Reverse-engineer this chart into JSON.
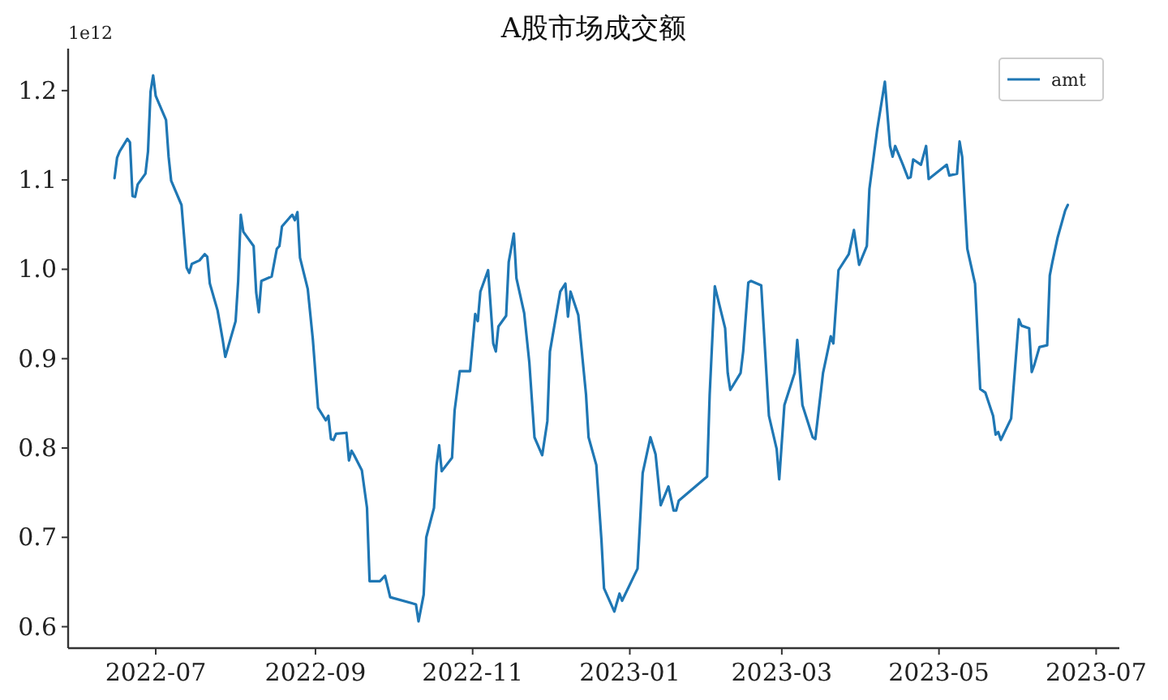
{
  "chart_data": {
    "type": "line",
    "title": "A股市场成交额",
    "annotations": [
      "1e12"
    ],
    "legend": "top right",
    "xlim": [
      "2022-05-28",
      "2023-07-10"
    ],
    "xticks": [
      "2022-07",
      "2022-09",
      "2022-11",
      "2023-01",
      "2023-03",
      "2023-05",
      "2023-07"
    ],
    "ylim": [
      0.576,
      1.247
    ],
    "yticks": [
      0.6,
      0.7,
      0.8,
      0.9,
      {
        "value": 1.0,
        "label": "1.0"
      },
      1.1,
      1.2
    ],
    "x": [
      "2022-06-15",
      "2022-06-16",
      "2022-06-17",
      "2022-06-20",
      "2022-06-21",
      "2022-06-22",
      "2022-06-23",
      "2022-06-24",
      "2022-06-27",
      "2022-06-28",
      "2022-06-29",
      "2022-06-30",
      "2022-07-01",
      "2022-07-05",
      "2022-07-06",
      "2022-07-07",
      "2022-07-11",
      "2022-07-13",
      "2022-07-14",
      "2022-07-15",
      "2022-07-18",
      "2022-07-20",
      "2022-07-21",
      "2022-07-22",
      "2022-07-25",
      "2022-07-27",
      "2022-07-28",
      "2022-08-01",
      "2022-08-02",
      "2022-08-03",
      "2022-08-04",
      "2022-08-08",
      "2022-08-09",
      "2022-08-10",
      "2022-08-11",
      "2022-08-15",
      "2022-08-17",
      "2022-08-18",
      "2022-08-19",
      "2022-08-22",
      "2022-08-23",
      "2022-08-24",
      "2022-08-25",
      "2022-08-26",
      "2022-08-29",
      "2022-08-31",
      "2022-09-02",
      "2022-09-05",
      "2022-09-06",
      "2022-09-07",
      "2022-09-08",
      "2022-09-09",
      "2022-09-13",
      "2022-09-14",
      "2022-09-15",
      "2022-09-16",
      "2022-09-19",
      "2022-09-21",
      "2022-09-22",
      "2022-09-26",
      "2022-09-28",
      "2022-09-30",
      "2022-10-10",
      "2022-10-11",
      "2022-10-13",
      "2022-10-14",
      "2022-10-17",
      "2022-10-18",
      "2022-10-19",
      "2022-10-20",
      "2022-10-24",
      "2022-10-25",
      "2022-10-27",
      "2022-10-31",
      "2022-11-02",
      "2022-11-03",
      "2022-11-04",
      "2022-11-07",
      "2022-11-09",
      "2022-11-10",
      "2022-11-11",
      "2022-11-14",
      "2022-11-15",
      "2022-11-17",
      "2022-11-18",
      "2022-11-21",
      "2022-11-23",
      "2022-11-25",
      "2022-11-28",
      "2022-11-30",
      "2022-12-01",
      "2022-12-05",
      "2022-12-07",
      "2022-12-08",
      "2022-12-09",
      "2022-12-12",
      "2022-12-15",
      "2022-12-16",
      "2022-12-19",
      "2022-12-21",
      "2022-12-22",
      "2022-12-26",
      "2022-12-28",
      "2022-12-29",
      "2023-01-04",
      "2023-01-06",
      "2023-01-09",
      "2023-01-11",
      "2023-01-13",
      "2023-01-16",
      "2023-01-18",
      "2023-01-19",
      "2023-01-20",
      "2023-01-31",
      "2023-02-01",
      "2023-02-03",
      "2023-02-07",
      "2023-02-08",
      "2023-02-09",
      "2023-02-13",
      "2023-02-14",
      "2023-02-16",
      "2023-02-17",
      "2023-02-21",
      "2023-02-24",
      "2023-02-27",
      "2023-02-28",
      "2023-03-02",
      "2023-03-06",
      "2023-03-07",
      "2023-03-09",
      "2023-03-13",
      "2023-03-14",
      "2023-03-17",
      "2023-03-20",
      "2023-03-21",
      "2023-03-23",
      "2023-03-27",
      "2023-03-29",
      "2023-03-31",
      "2023-04-03",
      "2023-04-04",
      "2023-04-07",
      "2023-04-10",
      "2023-04-12",
      "2023-04-13",
      "2023-04-14",
      "2023-04-17",
      "2023-04-19",
      "2023-04-20",
      "2023-04-21",
      "2023-04-24",
      "2023-04-26",
      "2023-04-27",
      "2023-05-04",
      "2023-05-05",
      "2023-05-08",
      "2023-05-09",
      "2023-05-10",
      "2023-05-12",
      "2023-05-15",
      "2023-05-17",
      "2023-05-19",
      "2023-05-22",
      "2023-05-23",
      "2023-05-24",
      "2023-05-25",
      "2023-05-29",
      "2023-06-01",
      "2023-06-02",
      "2023-06-05",
      "2023-06-06",
      "2023-06-07",
      "2023-06-09",
      "2023-06-12",
      "2023-06-13",
      "2023-06-14",
      "2023-06-16",
      "2023-06-19",
      "2023-06-20"
    ],
    "series": [
      {
        "name": "amt",
        "color": "#1f77b4",
        "values": [
          1.102,
          1.125,
          1.132,
          1.146,
          1.142,
          1.082,
          1.081,
          1.095,
          1.107,
          1.132,
          1.199,
          1.217,
          1.194,
          1.167,
          1.126,
          1.099,
          1.072,
          1.002,
          0.996,
          1.006,
          1.01,
          1.017,
          1.014,
          0.984,
          0.954,
          0.921,
          0.902,
          0.942,
          0.987,
          1.061,
          1.042,
          1.026,
          0.974,
          0.952,
          0.987,
          0.992,
          1.023,
          1.026,
          1.048,
          1.058,
          1.061,
          1.055,
          1.064,
          1.013,
          0.978,
          0.921,
          0.845,
          0.831,
          0.836,
          0.81,
          0.809,
          0.816,
          0.817,
          0.786,
          0.797,
          0.792,
          0.775,
          0.733,
          0.651,
          0.651,
          0.657,
          0.633,
          0.625,
          0.606,
          0.636,
          0.7,
          0.733,
          0.781,
          0.803,
          0.774,
          0.789,
          0.842,
          0.886,
          0.886,
          0.95,
          0.942,
          0.975,
          0.999,
          0.917,
          0.908,
          0.936,
          0.948,
          1.008,
          1.04,
          0.99,
          0.951,
          0.896,
          0.812,
          0.792,
          0.83,
          0.908,
          0.975,
          0.984,
          0.947,
          0.975,
          0.949,
          0.86,
          0.812,
          0.781,
          0.697,
          0.643,
          0.617,
          0.637,
          0.629,
          0.665,
          0.772,
          0.812,
          0.793,
          0.736,
          0.757,
          0.73,
          0.73,
          0.741,
          0.768,
          0.86,
          0.981,
          0.934,
          0.884,
          0.865,
          0.884,
          0.908,
          0.985,
          0.987,
          0.982,
          0.836,
          0.799,
          0.765,
          0.848,
          0.884,
          0.921,
          0.848,
          0.812,
          0.81,
          0.884,
          0.925,
          0.917,
          0.999,
          1.017,
          1.044,
          1.005,
          1.026,
          1.09,
          1.156,
          1.21,
          1.138,
          1.126,
          1.138,
          1.117,
          1.102,
          1.103,
          1.123,
          1.117,
          1.138,
          1.101,
          1.117,
          1.105,
          1.107,
          1.143,
          1.126,
          1.023,
          0.984,
          0.866,
          0.862,
          0.836,
          0.815,
          0.818,
          0.809,
          0.833,
          0.944,
          0.937,
          0.934,
          0.885,
          0.893,
          0.913,
          0.915,
          0.993,
          1.008,
          1.035,
          1.066,
          1.072
        ]
      }
    ]
  }
}
